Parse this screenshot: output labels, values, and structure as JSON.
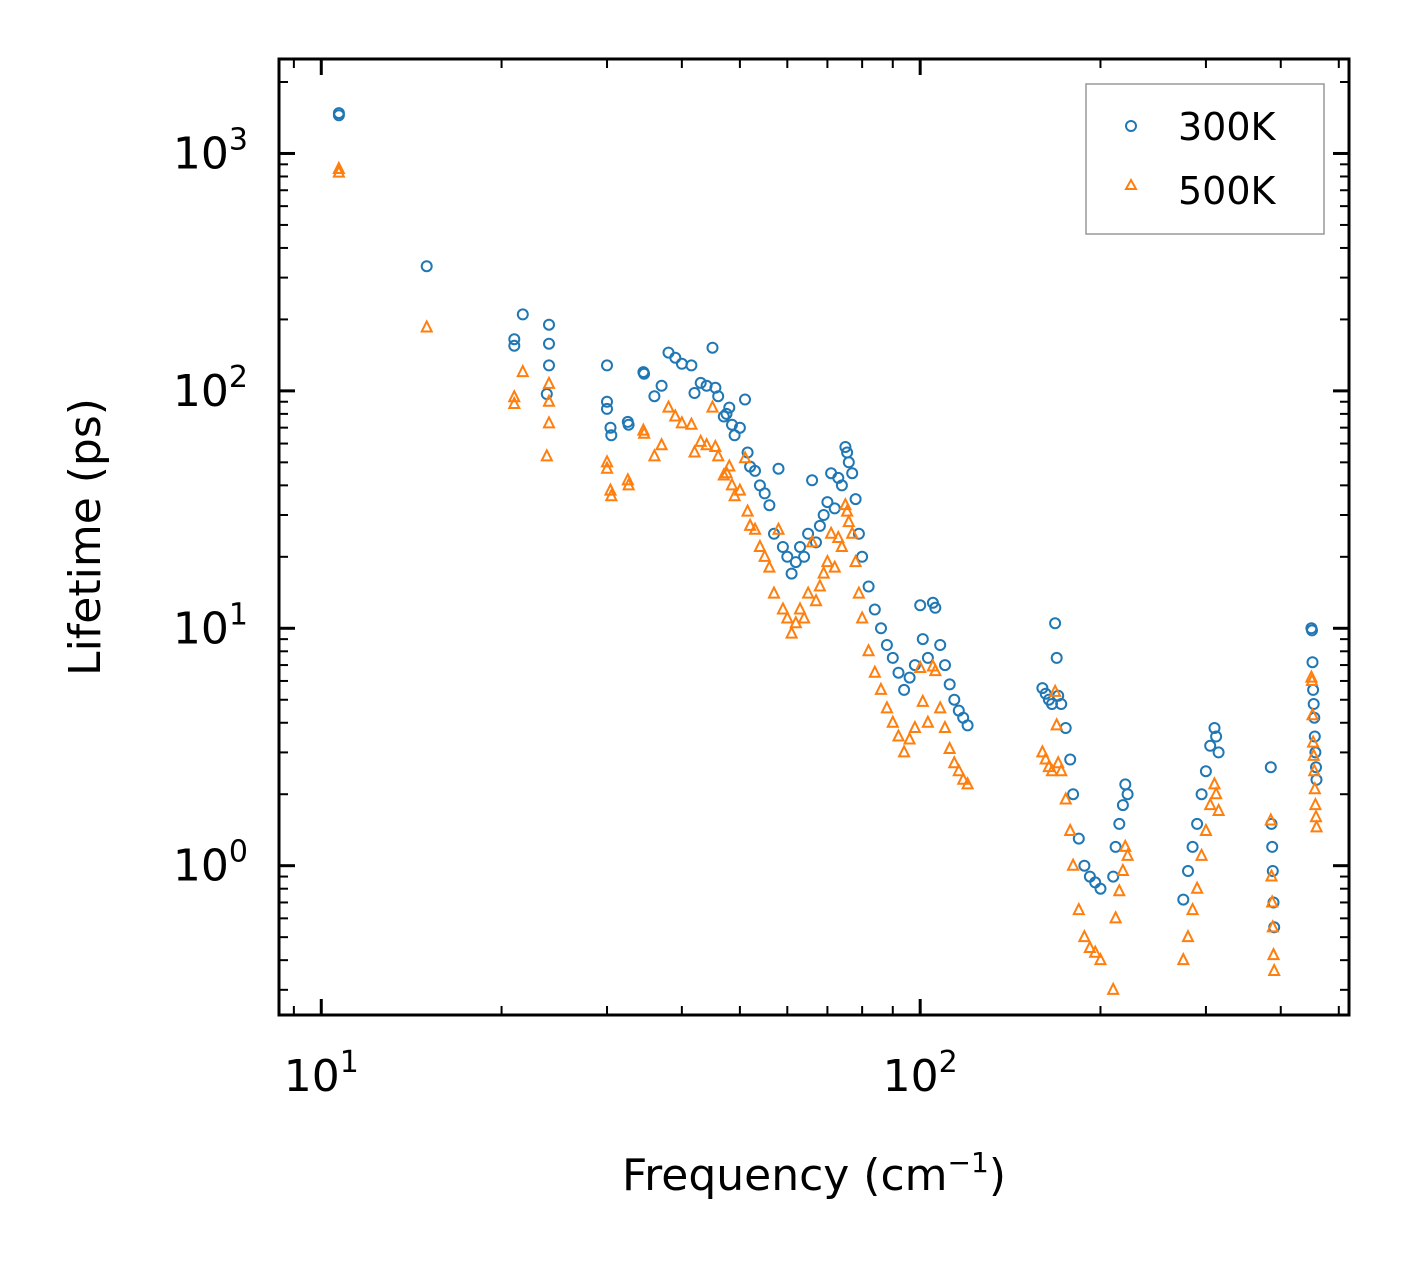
{
  "chart_data": {
    "type": "scatter",
    "title": "",
    "xlabel": "Frequency (cm",
    "xlabel_sup": "−1",
    "xlabel_close": ")",
    "ylabel": "Lifetime (ps)",
    "xscale": "log",
    "yscale": "log",
    "xlim": [
      8.5,
      520
    ],
    "ylim": [
      0.235,
      2500
    ],
    "x_ticks": [
      {
        "value": 10,
        "base": "10",
        "exp": "1"
      },
      {
        "value": 100,
        "base": "10",
        "exp": "2"
      }
    ],
    "y_ticks": [
      {
        "value": 1,
        "base": "10",
        "exp": "0"
      },
      {
        "value": 10,
        "base": "10",
        "exp": "1"
      },
      {
        "value": 100,
        "base": "10",
        "exp": "2"
      },
      {
        "value": 1000,
        "base": "10",
        "exp": "3"
      }
    ],
    "legend_position": "top-right",
    "series": [
      {
        "name": "300K",
        "marker": "circle",
        "color": "#1f77b4",
        "points": [
          [
            10.7,
            1480
          ],
          [
            10.7,
            1450
          ],
          [
            15.0,
            335
          ],
          [
            21.0,
            165
          ],
          [
            21.0,
            155
          ],
          [
            21.7,
            210
          ],
          [
            24.0,
            190
          ],
          [
            24.0,
            158
          ],
          [
            24.0,
            128
          ],
          [
            23.8,
            97
          ],
          [
            30.0,
            128
          ],
          [
            30.0,
            90
          ],
          [
            30.0,
            84
          ],
          [
            30.4,
            70
          ],
          [
            30.5,
            65
          ],
          [
            32.5,
            74
          ],
          [
            32.6,
            72
          ],
          [
            34.5,
            120
          ],
          [
            34.6,
            118
          ],
          [
            36.0,
            95
          ],
          [
            37.0,
            105
          ],
          [
            38.0,
            145
          ],
          [
            39.0,
            138
          ],
          [
            40.0,
            130
          ],
          [
            41.5,
            128
          ],
          [
            42.0,
            98
          ],
          [
            43.0,
            108
          ],
          [
            44.0,
            105
          ],
          [
            45.0,
            152
          ],
          [
            45.5,
            103
          ],
          [
            46.0,
            95
          ],
          [
            47.0,
            78
          ],
          [
            47.5,
            80
          ],
          [
            48.0,
            85
          ],
          [
            48.5,
            72
          ],
          [
            49.0,
            65
          ],
          [
            50.0,
            70
          ],
          [
            51.0,
            92
          ],
          [
            51.5,
            55
          ],
          [
            52.0,
            48
          ],
          [
            53.0,
            46
          ],
          [
            54.0,
            40
          ],
          [
            55.0,
            37
          ],
          [
            56.0,
            33
          ],
          [
            57.0,
            25
          ],
          [
            58.0,
            47
          ],
          [
            59.0,
            22
          ],
          [
            60.0,
            20
          ],
          [
            61.0,
            17
          ],
          [
            62.0,
            19
          ],
          [
            63.0,
            22
          ],
          [
            64.0,
            20
          ],
          [
            65.0,
            25
          ],
          [
            66.0,
            42
          ],
          [
            67.0,
            23
          ],
          [
            68.0,
            27
          ],
          [
            69.0,
            30
          ],
          [
            70.0,
            34
          ],
          [
            71.0,
            45
          ],
          [
            72.0,
            32
          ],
          [
            73.0,
            43
          ],
          [
            74.0,
            40
          ],
          [
            75.0,
            58
          ],
          [
            75.5,
            55
          ],
          [
            76.0,
            50
          ],
          [
            77.0,
            45
          ],
          [
            78.0,
            35
          ],
          [
            79.0,
            25
          ],
          [
            80.0,
            20
          ],
          [
            82.0,
            15
          ],
          [
            84.0,
            12
          ],
          [
            86.0,
            10
          ],
          [
            88.0,
            8.5
          ],
          [
            90.0,
            7.5
          ],
          [
            92.0,
            6.5
          ],
          [
            94.0,
            5.5
          ],
          [
            96.0,
            6.2
          ],
          [
            98.0,
            7
          ],
          [
            100.0,
            12.5
          ],
          [
            101.0,
            9
          ],
          [
            103.0,
            7.5
          ],
          [
            105.0,
            12.8
          ],
          [
            106.0,
            12.2
          ],
          [
            108.0,
            8.5
          ],
          [
            110.0,
            7
          ],
          [
            112.0,
            5.8
          ],
          [
            114.0,
            5
          ],
          [
            116.0,
            4.5
          ],
          [
            118.0,
            4.2
          ],
          [
            120.0,
            3.9
          ],
          [
            160.0,
            5.6
          ],
          [
            162.0,
            5.3
          ],
          [
            164.0,
            5.0
          ],
          [
            166.0,
            4.8
          ],
          [
            168.0,
            10.5
          ],
          [
            169.0,
            7.5
          ],
          [
            170.0,
            5.2
          ],
          [
            172.0,
            4.8
          ],
          [
            175.0,
            3.8
          ],
          [
            178.0,
            2.8
          ],
          [
            180.0,
            2.0
          ],
          [
            184.0,
            1.3
          ],
          [
            188.0,
            1.0
          ],
          [
            192.0,
            0.9
          ],
          [
            196.0,
            0.85
          ],
          [
            200.0,
            0.8
          ],
          [
            210.0,
            0.9
          ],
          [
            212.0,
            1.2
          ],
          [
            215.0,
            1.5
          ],
          [
            218.0,
            1.8
          ],
          [
            220.0,
            2.2
          ],
          [
            222.0,
            2.0
          ],
          [
            275.0,
            0.72
          ],
          [
            280.0,
            0.95
          ],
          [
            285.0,
            1.2
          ],
          [
            290.0,
            1.5
          ],
          [
            295.0,
            2.0
          ],
          [
            300.0,
            2.5
          ],
          [
            305.0,
            3.2
          ],
          [
            310.0,
            3.8
          ],
          [
            312.0,
            3.5
          ],
          [
            315.0,
            3.0
          ],
          [
            385.0,
            2.6
          ],
          [
            386.0,
            1.5
          ],
          [
            387.0,
            1.2
          ],
          [
            388.0,
            0.95
          ],
          [
            389.0,
            0.7
          ],
          [
            390.0,
            0.55
          ],
          [
            450.0,
            10
          ],
          [
            451.0,
            9.8
          ],
          [
            452.0,
            7.2
          ],
          [
            453.0,
            5.5
          ],
          [
            454.0,
            4.8
          ],
          [
            455.0,
            4.2
          ],
          [
            456.0,
            3.5
          ],
          [
            457.0,
            3.0
          ],
          [
            458.0,
            2.6
          ],
          [
            459.0,
            2.3
          ]
        ]
      },
      {
        "name": "500K",
        "marker": "triangle",
        "color": "#ff7f0e",
        "points": [
          [
            10.7,
            860
          ],
          [
            10.7,
            830
          ],
          [
            15.0,
            185
          ],
          [
            21.0,
            94
          ],
          [
            21.0,
            88
          ],
          [
            21.7,
            120
          ],
          [
            24.0,
            107
          ],
          [
            24.0,
            90
          ],
          [
            24.0,
            73
          ],
          [
            23.8,
            53
          ],
          [
            30.0,
            50
          ],
          [
            30.0,
            47
          ],
          [
            30.4,
            38
          ],
          [
            30.5,
            36
          ],
          [
            32.5,
            42
          ],
          [
            32.6,
            40
          ],
          [
            34.5,
            68
          ],
          [
            34.6,
            66
          ],
          [
            36.0,
            53
          ],
          [
            37.0,
            59
          ],
          [
            38.0,
            85
          ],
          [
            39.0,
            78
          ],
          [
            40.0,
            73
          ],
          [
            41.5,
            72
          ],
          [
            42.0,
            55
          ],
          [
            43.0,
            61
          ],
          [
            44.0,
            59
          ],
          [
            45.0,
            85
          ],
          [
            45.5,
            58
          ],
          [
            46.0,
            53
          ],
          [
            47.0,
            44
          ],
          [
            47.5,
            45
          ],
          [
            48.0,
            48
          ],
          [
            48.5,
            40
          ],
          [
            49.0,
            36
          ],
          [
            50.0,
            38
          ],
          [
            51.0,
            52
          ],
          [
            51.5,
            31
          ],
          [
            52.0,
            27
          ],
          [
            53.0,
            26
          ],
          [
            54.0,
            22
          ],
          [
            55.0,
            20
          ],
          [
            56.0,
            18
          ],
          [
            57.0,
            14
          ],
          [
            58.0,
            26
          ],
          [
            59.0,
            12
          ],
          [
            60.0,
            11
          ],
          [
            61.0,
            9.5
          ],
          [
            62.0,
            10.5
          ],
          [
            63.0,
            12
          ],
          [
            64.0,
            11
          ],
          [
            65.0,
            14
          ],
          [
            66.0,
            23
          ],
          [
            67.0,
            13
          ],
          [
            68.0,
            15
          ],
          [
            69.0,
            17
          ],
          [
            70.0,
            19
          ],
          [
            71.0,
            25
          ],
          [
            72.0,
            18
          ],
          [
            73.0,
            24
          ],
          [
            74.0,
            22
          ],
          [
            75.0,
            33
          ],
          [
            75.5,
            31
          ],
          [
            76.0,
            28
          ],
          [
            77.0,
            25
          ],
          [
            78.0,
            19
          ],
          [
            79.0,
            14
          ],
          [
            80.0,
            11
          ],
          [
            82.0,
            8
          ],
          [
            84.0,
            6.5
          ],
          [
            86.0,
            5.5
          ],
          [
            88.0,
            4.6
          ],
          [
            90.0,
            4.0
          ],
          [
            92.0,
            3.5
          ],
          [
            94.0,
            3.0
          ],
          [
            96.0,
            3.4
          ],
          [
            98.0,
            3.8
          ],
          [
            100.0,
            6.8
          ],
          [
            101.0,
            4.9
          ],
          [
            103.0,
            4.0
          ],
          [
            105.0,
            6.9
          ],
          [
            106.0,
            6.6
          ],
          [
            108.0,
            4.6
          ],
          [
            110.0,
            3.8
          ],
          [
            112.0,
            3.1
          ],
          [
            114.0,
            2.7
          ],
          [
            116.0,
            2.5
          ],
          [
            118.0,
            2.3
          ],
          [
            120.0,
            2.2
          ],
          [
            160.0,
            3.0
          ],
          [
            162.0,
            2.8
          ],
          [
            164.0,
            2.6
          ],
          [
            166.0,
            2.5
          ],
          [
            168.0,
            5.4
          ],
          [
            169.0,
            3.9
          ],
          [
            170.0,
            2.7
          ],
          [
            172.0,
            2.5
          ],
          [
            175.0,
            1.9
          ],
          [
            178.0,
            1.4
          ],
          [
            180.0,
            1.0
          ],
          [
            184.0,
            0.65
          ],
          [
            188.0,
            0.5
          ],
          [
            192.0,
            0.45
          ],
          [
            196.0,
            0.43
          ],
          [
            200.0,
            0.4
          ],
          [
            210.0,
            0.3
          ],
          [
            212.0,
            0.6
          ],
          [
            215.0,
            0.78
          ],
          [
            218.0,
            0.95
          ],
          [
            220.0,
            1.2
          ],
          [
            222.0,
            1.1
          ],
          [
            275.0,
            0.4
          ],
          [
            280.0,
            0.5
          ],
          [
            285.0,
            0.65
          ],
          [
            290.0,
            0.8
          ],
          [
            295.0,
            1.1
          ],
          [
            300.0,
            1.4
          ],
          [
            305.0,
            1.8
          ],
          [
            310.0,
            2.2
          ],
          [
            312.0,
            2.0
          ],
          [
            315.0,
            1.7
          ],
          [
            385.0,
            1.55
          ],
          [
            386.0,
            0.9
          ],
          [
            387.0,
            0.7
          ],
          [
            388.0,
            0.55
          ],
          [
            389.0,
            0.42
          ],
          [
            390.0,
            0.36
          ],
          [
            450.0,
            6.2
          ],
          [
            451.0,
            6.0
          ],
          [
            452.0,
            4.3
          ],
          [
            453.0,
            3.3
          ],
          [
            454.0,
            2.9
          ],
          [
            455.0,
            2.5
          ],
          [
            456.0,
            2.1
          ],
          [
            457.0,
            1.8
          ],
          [
            458.0,
            1.6
          ],
          [
            459.0,
            1.45
          ]
        ]
      }
    ]
  }
}
